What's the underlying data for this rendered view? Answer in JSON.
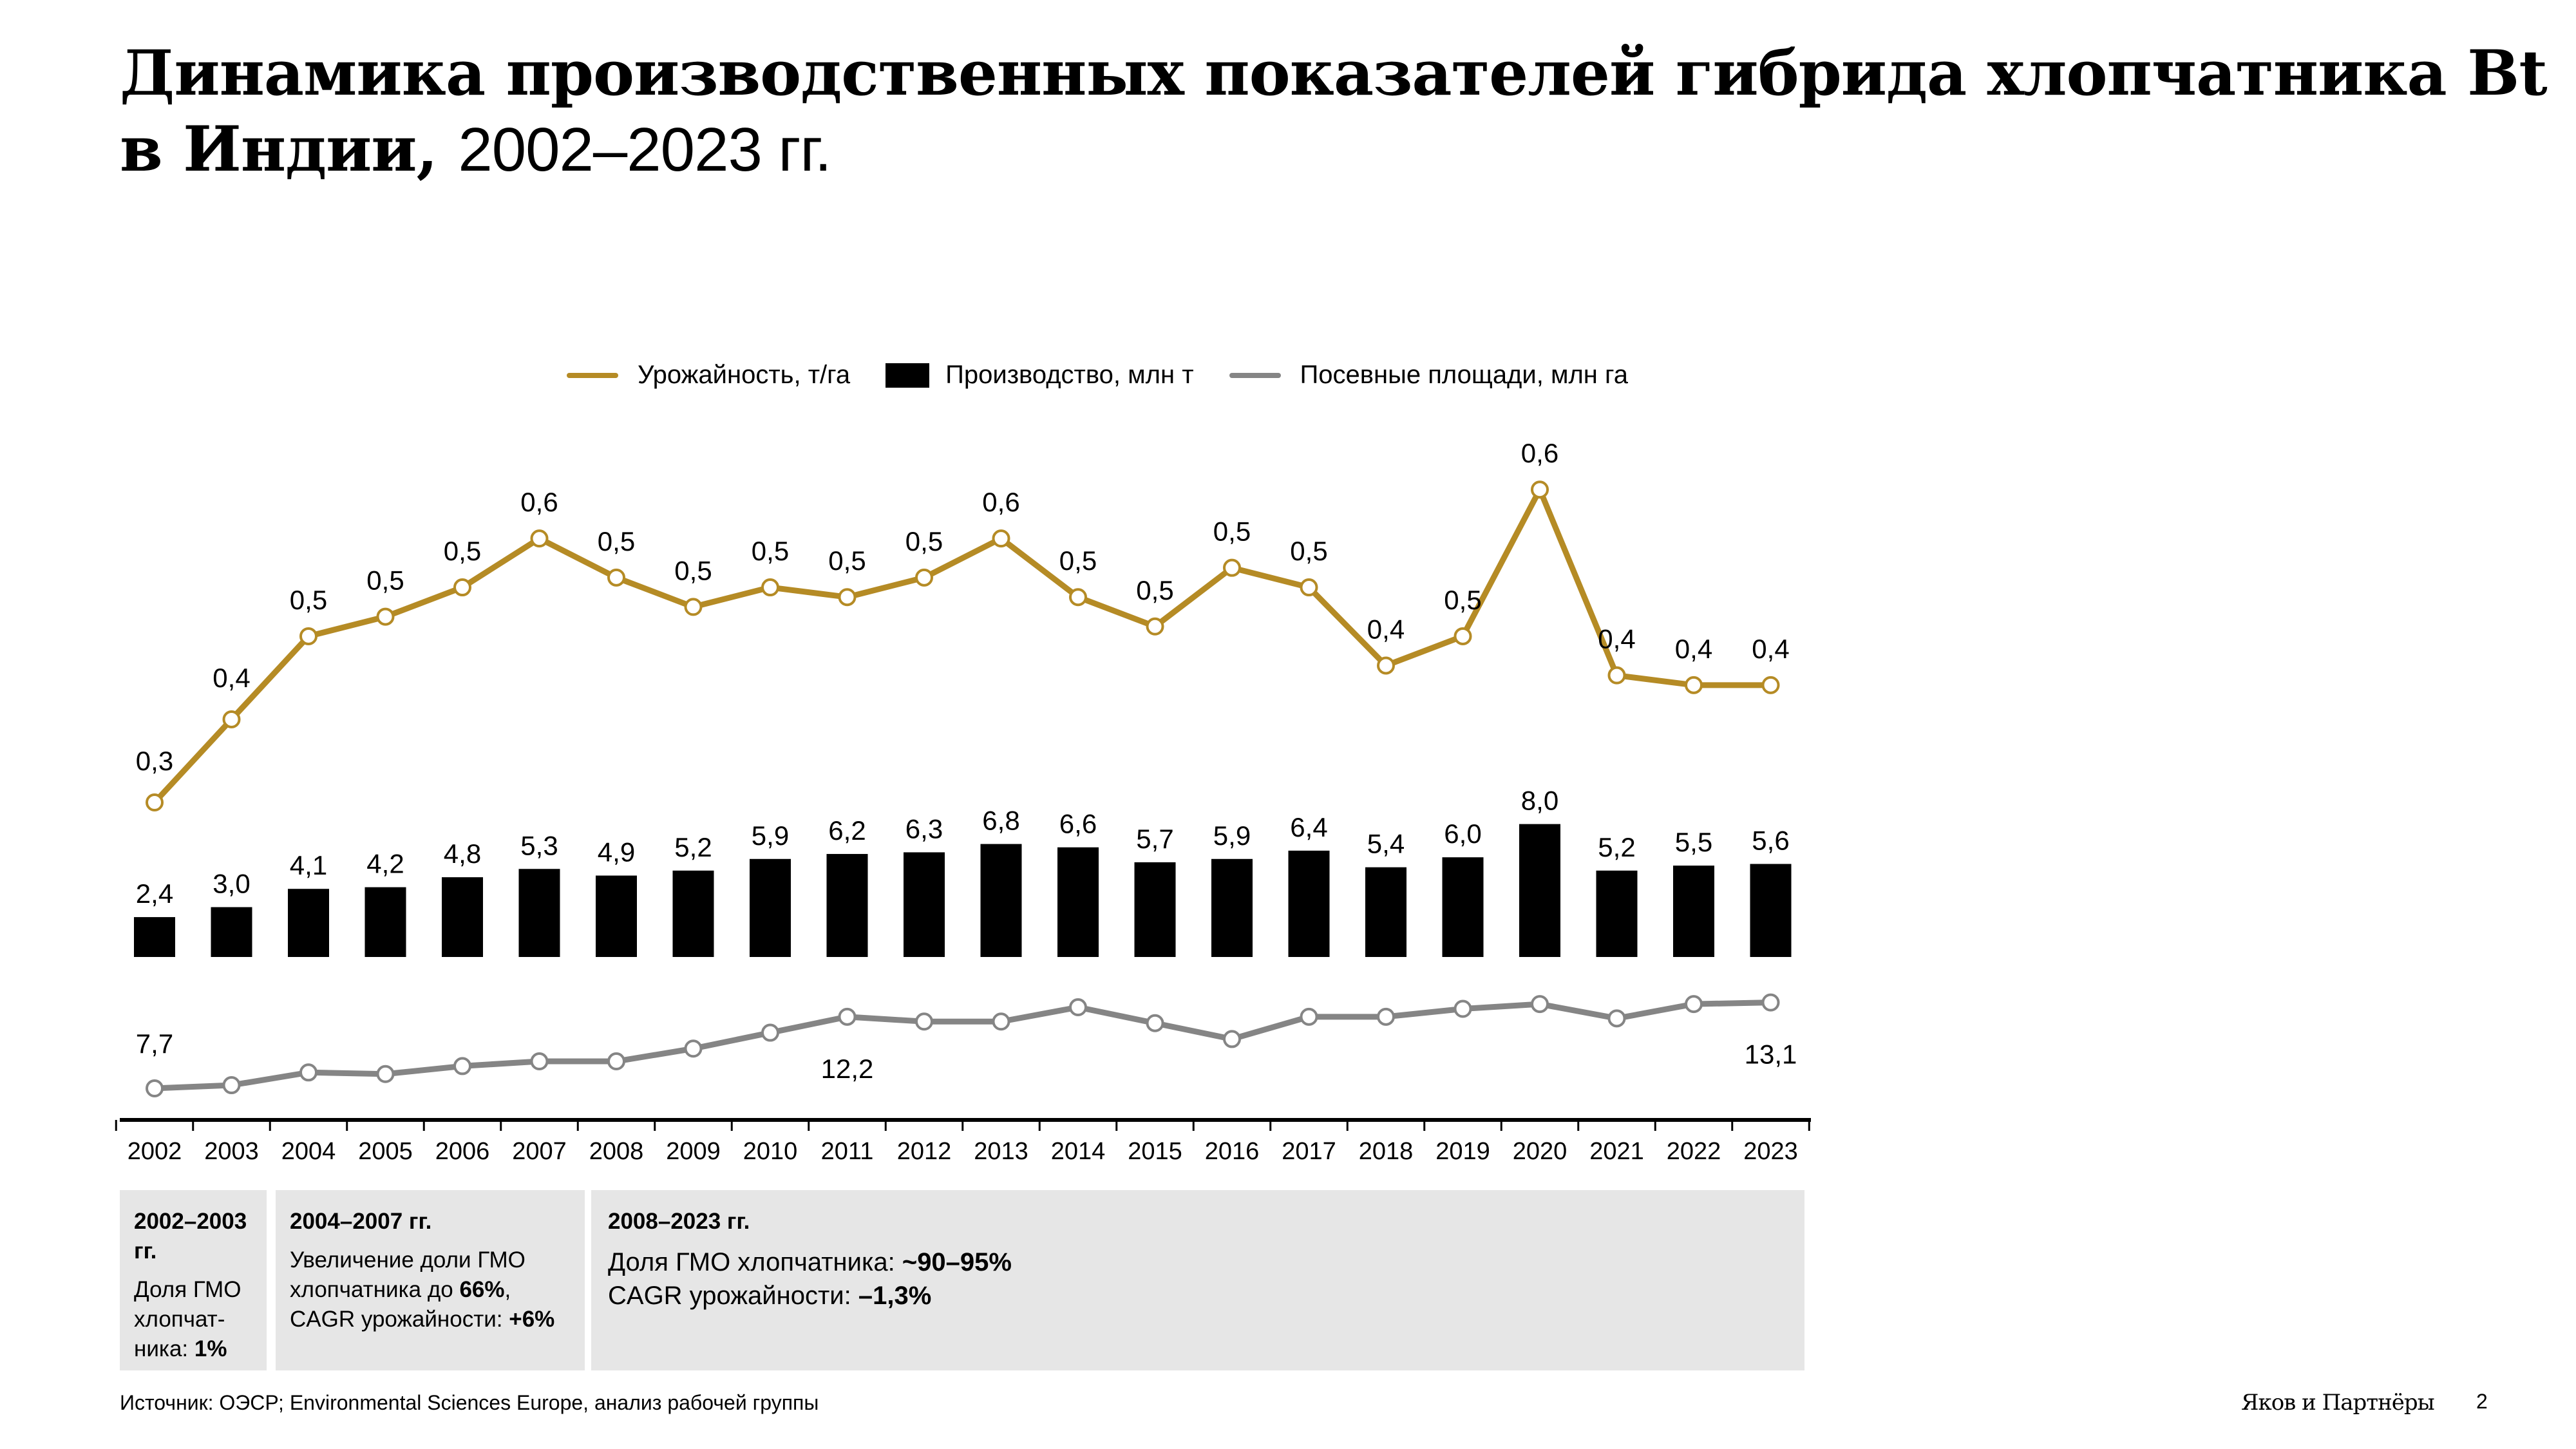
{
  "title": {
    "bold": "Динамика производственных показателей гибрида хлопчатника Bt в Индии,",
    "light": "2002–2023 гг."
  },
  "colors": {
    "yield": "#b58b25",
    "production": "#000000",
    "area": "#858585",
    "box_bg": "#e6e6e6"
  },
  "chart_data": {
    "type": "bar+line",
    "categories": [
      "2002",
      "2003",
      "2004",
      "2005",
      "2006",
      "2007",
      "2008",
      "2009",
      "2010",
      "2011",
      "2012",
      "2013",
      "2014",
      "2015",
      "2016",
      "2017",
      "2018",
      "2019",
      "2020",
      "2021",
      "2022",
      "2023"
    ],
    "legend_position": "top",
    "grid": false,
    "series": [
      {
        "name": "Урожайность, т/га",
        "type": "line",
        "color": "#b58b25",
        "values": [
          0.3,
          0.385,
          0.47,
          0.49,
          0.52,
          0.57,
          0.53,
          0.5,
          0.52,
          0.51,
          0.53,
          0.57,
          0.51,
          0.48,
          0.54,
          0.52,
          0.44,
          0.47,
          0.62,
          0.43,
          0.42,
          0.42
        ],
        "labels": [
          "0,3",
          "0,4",
          "0,5",
          "0,5",
          "0,5",
          "0,6",
          "0,5",
          "0,5",
          "0,5",
          "0,5",
          "0,5",
          "0,6",
          "0,5",
          "0,5",
          "0,5",
          "0,5",
          "0,4",
          "0,5",
          "0,6",
          "0,4",
          "0,4",
          "0,4"
        ]
      },
      {
        "name": "Производство, млн т",
        "type": "bar",
        "color": "#000000",
        "values": [
          2.4,
          3.0,
          4.1,
          4.2,
          4.8,
          5.3,
          4.9,
          5.2,
          5.9,
          6.2,
          6.3,
          6.8,
          6.6,
          5.7,
          5.9,
          6.4,
          5.4,
          6.0,
          8.0,
          5.2,
          5.5,
          5.6
        ],
        "labels": [
          "2,4",
          "3,0",
          "4,1",
          "4,2",
          "4,8",
          "5,3",
          "4,9",
          "5,2",
          "5,9",
          "6,2",
          "6,3",
          "6,8",
          "6,6",
          "5,7",
          "5,9",
          "6,4",
          "5,4",
          "6,0",
          "8,0",
          "5,2",
          "5,5",
          "5,6"
        ]
      },
      {
        "name": "Посевные площади, млн га",
        "type": "line",
        "color": "#858585",
        "values": [
          7.7,
          7.9,
          8.7,
          8.6,
          9.1,
          9.4,
          9.4,
          10.2,
          11.2,
          12.2,
          11.9,
          11.9,
          12.8,
          11.8,
          10.8,
          12.2,
          12.2,
          12.7,
          13.0,
          12.1,
          13.0,
          13.1
        ],
        "labels": {
          "0": "7,7",
          "9": "12,2",
          "21": "13,1"
        }
      }
    ]
  },
  "periods": [
    {
      "title": "2002–2003 гг.",
      "lines": [
        {
          "text": "Доля ГМО хлопчат-ника: "
        },
        {
          "bold": "1%"
        }
      ]
    },
    {
      "title": "2004–2007 гг.",
      "lines": [
        {
          "text": "Увеличение доли ГМО хлопчатника до "
        },
        {
          "bold": "66%"
        },
        {
          "text": ", CAGR урожайности: "
        },
        {
          "bold": "+6%"
        }
      ]
    },
    {
      "title": "2008–2023 гг.",
      "line1": "Доля ГМО хлопчатника: ",
      "line1_bold": "~90–95%",
      "line2": "CAGR урожайности: ",
      "line2_bold": "–1,3%"
    }
  ],
  "footer": {
    "source": "Источник: ОЭСР; Environmental Sciences Europe, анализ рабочей группы",
    "logo": "Яков и Партнёры",
    "page": "2"
  }
}
